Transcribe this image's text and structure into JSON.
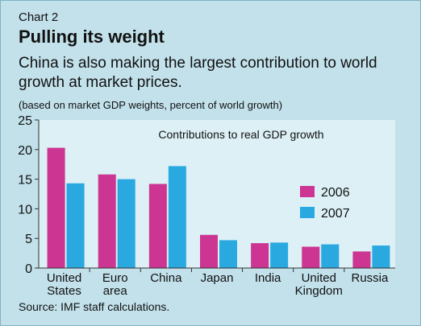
{
  "header": {
    "chart_label": "Chart 2",
    "title": "Pulling its weight",
    "subtitle": "China is also making the largest contribution to world growth at market prices.",
    "note": "(based on market GDP weights, percent of world growth)",
    "source": "Source: IMF staff calculations."
  },
  "colors": {
    "series_2006": "#cc3591",
    "series_2007": "#2aa8e0",
    "plot_bg": "#dcf0f6",
    "page_bg": "#c2e1eb",
    "axis": "#333333"
  },
  "chart_data": {
    "type": "bar",
    "title": "Contributions to real GDP growth",
    "categories": [
      "United States",
      "Euro area",
      "China",
      "Japan",
      "India",
      "United Kingdom",
      "Russia"
    ],
    "category_lines": [
      [
        "United",
        "States"
      ],
      [
        "Euro",
        "area"
      ],
      [
        "China"
      ],
      [
        "Japan"
      ],
      [
        "India"
      ],
      [
        "United",
        "Kingdom"
      ],
      [
        "Russia"
      ]
    ],
    "series": [
      {
        "name": "2006",
        "values": [
          20.3,
          15.8,
          14.2,
          5.6,
          4.2,
          3.6,
          2.8
        ]
      },
      {
        "name": "2007",
        "values": [
          14.3,
          15.0,
          17.2,
          4.7,
          4.3,
          4.0,
          3.8
        ]
      }
    ],
    "ylim": [
      0,
      25
    ],
    "yticks": [
      0,
      5,
      10,
      15,
      20,
      25
    ],
    "grid": false,
    "legend_position": "right"
  }
}
